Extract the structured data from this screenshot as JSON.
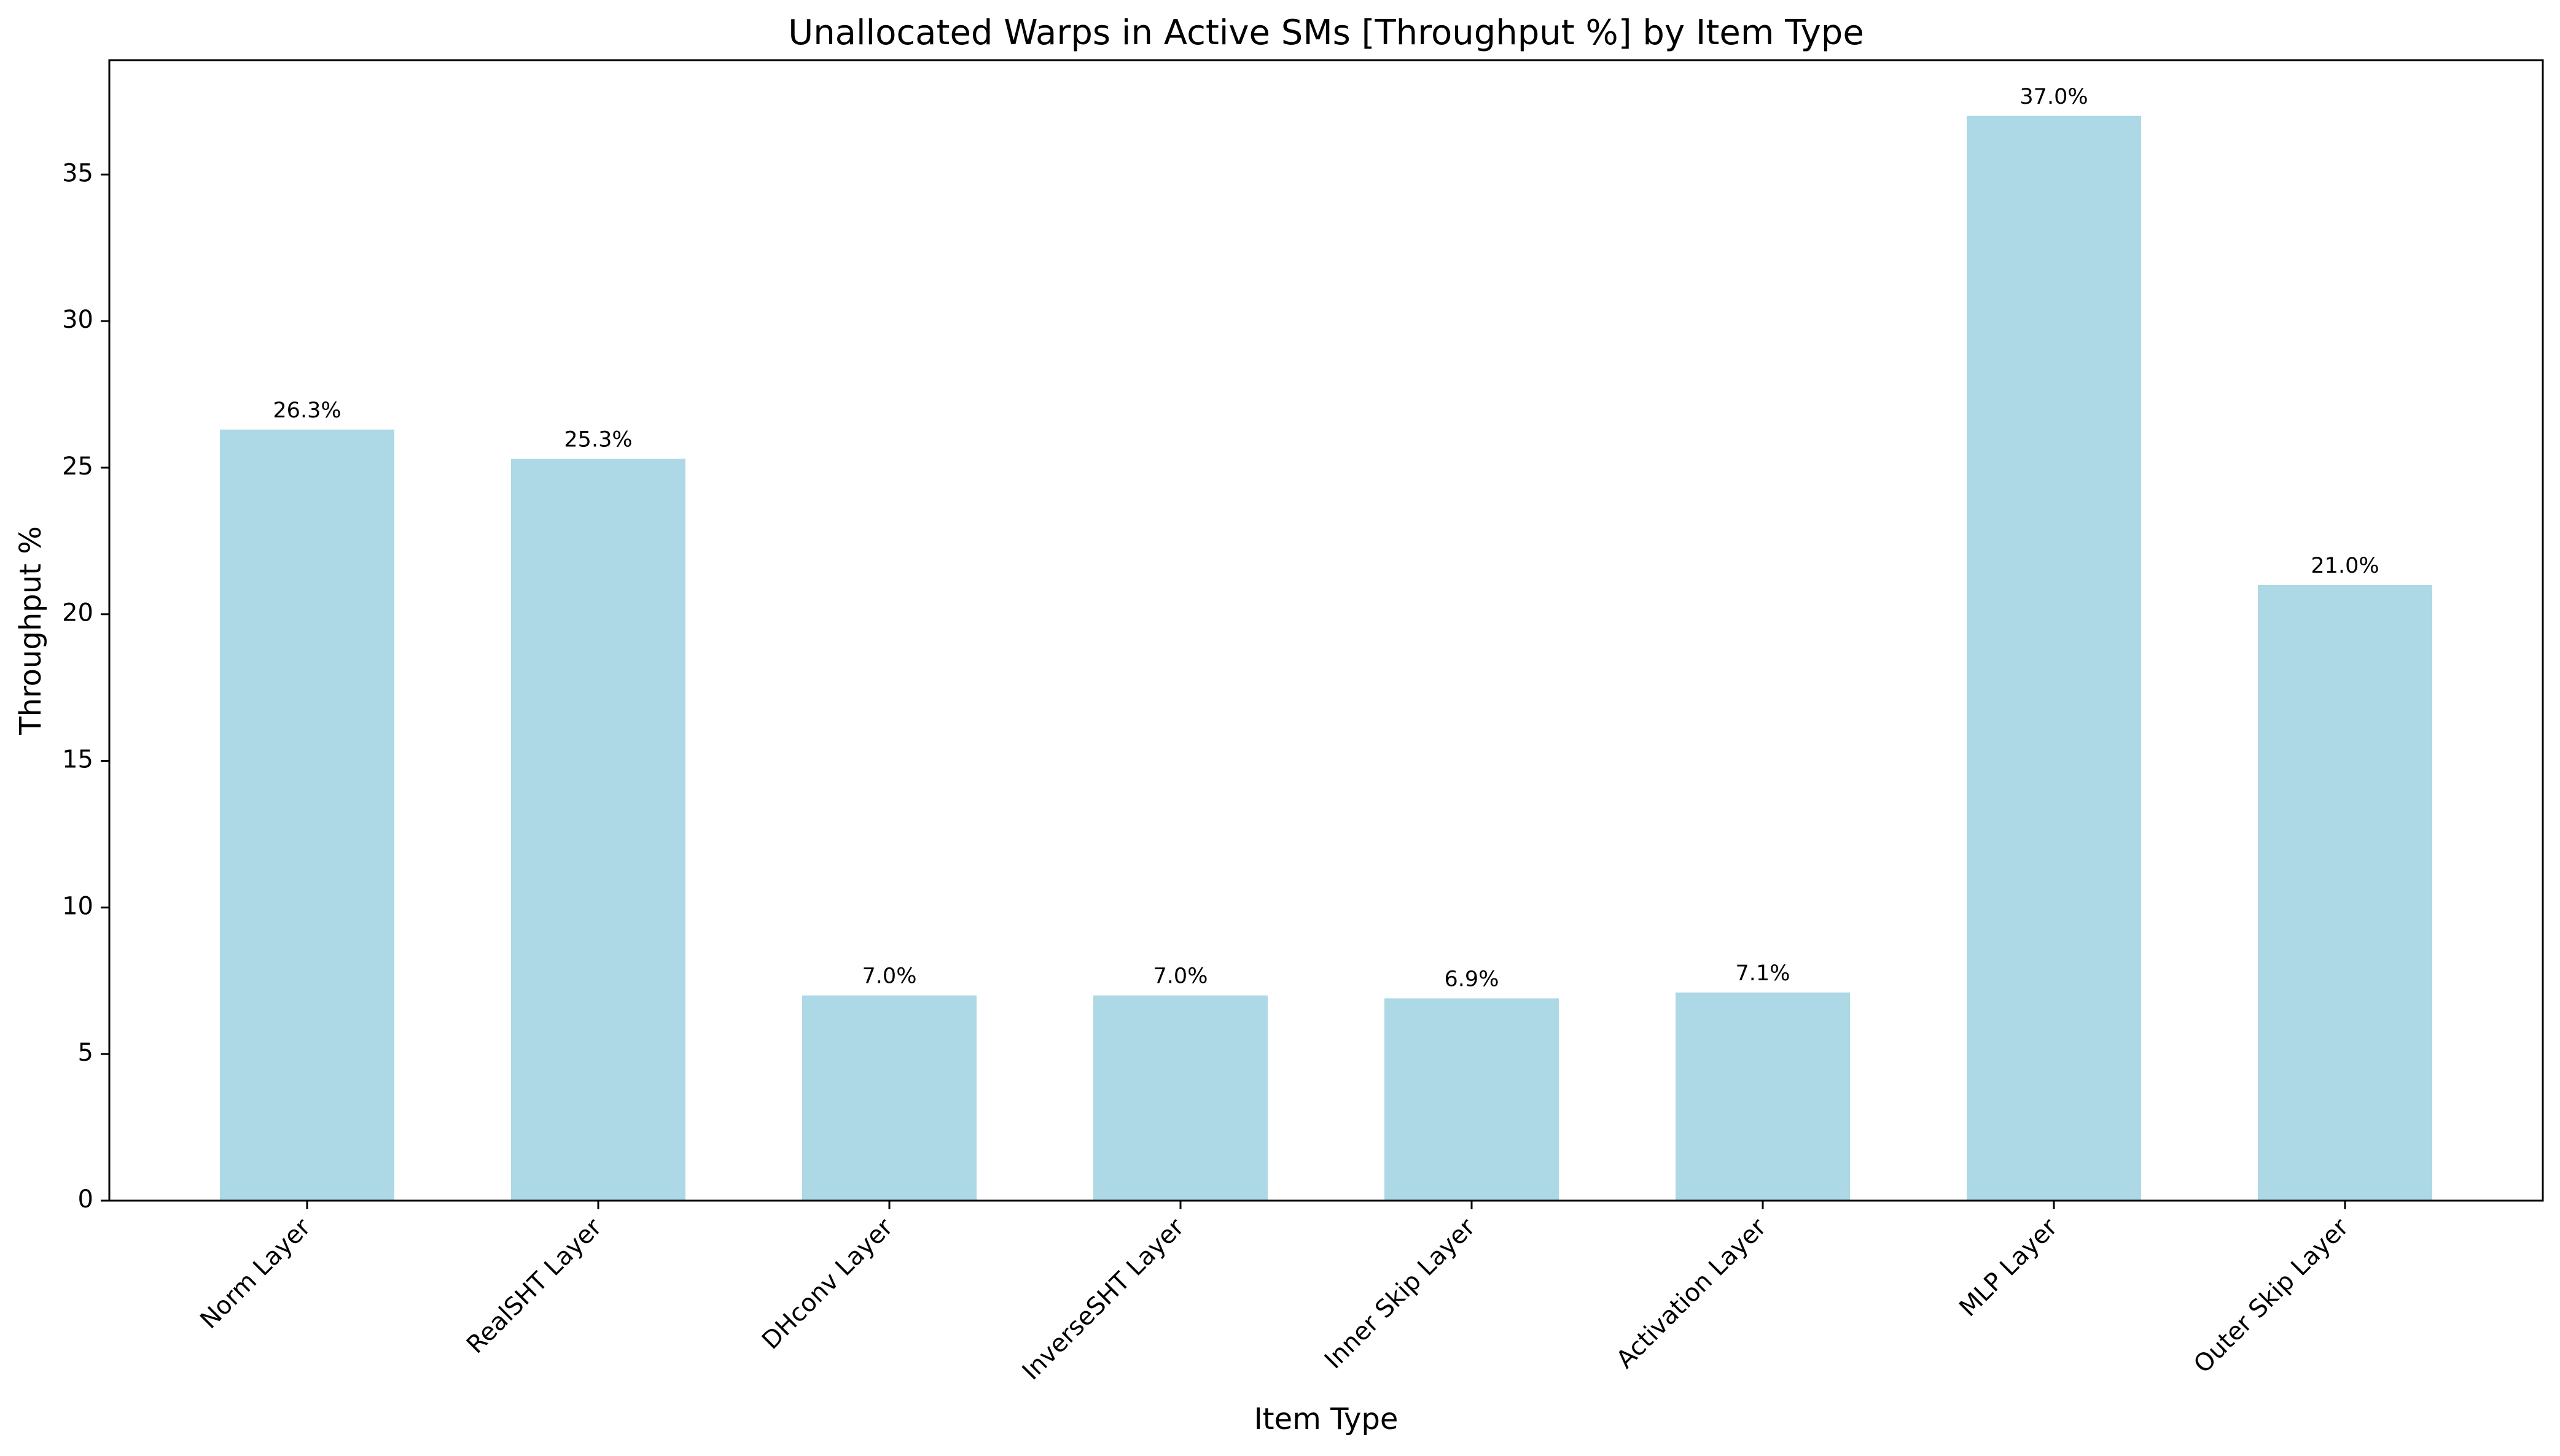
{
  "chart_data": {
    "type": "bar",
    "title": "Unallocated Warps in Active SMs [Throughput %] by Item Type",
    "xlabel": "Item Type",
    "ylabel": "Throughput %",
    "categories": [
      "Norm Layer",
      "RealSHT Layer",
      "DHconv Layer",
      "InverseSHT Layer",
      "Inner Skip Layer",
      "Activation Layer",
      "MLP Layer",
      "Outer Skip Layer"
    ],
    "values": [
      26.3,
      25.3,
      7.0,
      7.0,
      6.9,
      7.1,
      37.0,
      21.0
    ],
    "value_labels": [
      "26.3%",
      "25.3%",
      "7.0%",
      "7.0%",
      "6.9%",
      "7.1%",
      "37.0%",
      "21.0%"
    ],
    "yticks": [
      0,
      5,
      10,
      15,
      20,
      25,
      30,
      35
    ],
    "ylim": [
      0,
      38.9
    ],
    "grid": false,
    "bar_color": "#ADD8E6"
  }
}
